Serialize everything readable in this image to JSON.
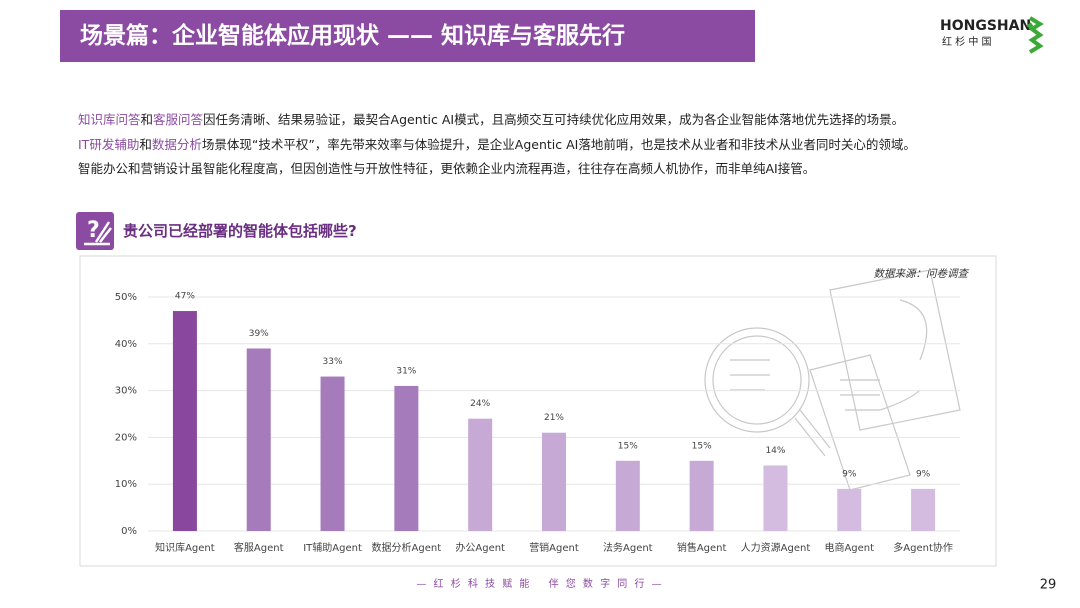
{
  "header": {
    "title": "场景篇：企业智能体应用现状 —— 知识库与客服先行",
    "logo_name": "HONGSHAN",
    "logo_sub": "红 杉 中 国"
  },
  "paragraphs": [
    [
      {
        "text": "知识库问答",
        "highlight": true
      },
      {
        "text": "和",
        "highlight": false
      },
      {
        "text": "客服问答",
        "highlight": true
      },
      {
        "text": "因任务清晰、结果易验证，最契合Agentic AI模式，且高频交互可持续优化应用效果，成为各企业智能体落地优先选择的场景。",
        "highlight": false
      }
    ],
    [
      {
        "text": "IT研发辅助",
        "highlight": true
      },
      {
        "text": "和",
        "highlight": false
      },
      {
        "text": "数据分析",
        "highlight": true
      },
      {
        "text": "场景体现“技术平权”，率先带来效率与体验提升，是企业Agentic AI落地前哨，也是技术从业者和非技术从业者同时关心的领域。",
        "highlight": false
      }
    ],
    [
      {
        "text": "智能办公和营销设计虽智能化程度高，但因创造性与开放性特征，更依赖企业内流程再造，往往存在高频人机协作，而非单纯AI接管。",
        "highlight": false
      }
    ]
  ],
  "question": "贵公司已经部署的智能体包括哪些?",
  "chart_data": {
    "type": "bar",
    "source": "数据来源：问卷调查",
    "categories": [
      "知识库Agent",
      "客服Agent",
      "IT辅助Agent",
      "数据分析Agent",
      "办公Agent",
      "营销Agent",
      "法务Agent",
      "销售Agent",
      "人力资源Agent",
      "电商Agent",
      "多Agent协作"
    ],
    "values": [
      47,
      39,
      33,
      31,
      24,
      21,
      15,
      15,
      14,
      9,
      9
    ],
    "value_labels": [
      "47%",
      "39%",
      "33%",
      "31%",
      "24%",
      "21%",
      "15%",
      "15%",
      "14%",
      "9%",
      "9%"
    ],
    "colors": [
      "#8a479e",
      "#a67bbb",
      "#a67bbb",
      "#a67bbb",
      "#c7a9d6",
      "#c7a9d6",
      "#c7a9d6",
      "#c7a9d6",
      "#d3bce0",
      "#d3bce0",
      "#d3bce0"
    ],
    "ylim": [
      0,
      50
    ],
    "yticks": [
      {
        "value": 0,
        "label": "0%"
      },
      {
        "value": 10,
        "label": "10%"
      },
      {
        "value": 20,
        "label": "20%"
      },
      {
        "value": 30,
        "label": "30%"
      },
      {
        "value": 40,
        "label": "40%"
      },
      {
        "value": 50,
        "label": "50%"
      }
    ],
    "grid": true
  },
  "footer": "— 红 杉 科 技 赋 能　 伴 您 数 字 同 行 —",
  "page_number": "29"
}
